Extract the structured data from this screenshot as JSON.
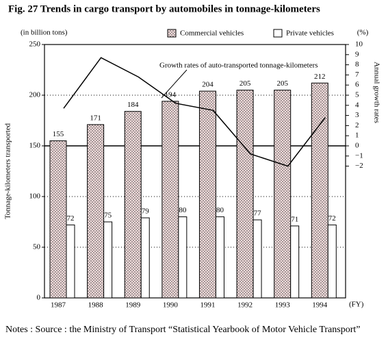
{
  "chart_data": {
    "type": "bar",
    "title": "Fig. 27 Trends in cargo transport by automobiles in tonnage-kilometers",
    "y_unit": "(in billion tons)",
    "y_label": "Tonnage-kilometers transported",
    "y2_unit": "(%)",
    "y2_label": "Annual growth rates",
    "x_unit": "(FY)",
    "annotation": "Growth rates of auto-transported tonnage-kilometers",
    "notes": "Notes : Source : the Ministry of Transport “Statistical Yearbook of Motor Vehicle Transport”",
    "categories": [
      "1987",
      "1988",
      "1989",
      "1990",
      "1991",
      "1992",
      "1993",
      "1994"
    ],
    "series": [
      {
        "name": "Commercial vehicles",
        "color": "#f2dcdc",
        "values": [
          155,
          171,
          184,
          194,
          204,
          205,
          205,
          212
        ]
      },
      {
        "name": "Private vehicles",
        "color": "#ffffff",
        "values": [
          72,
          75,
          79,
          80,
          80,
          77,
          71,
          72
        ]
      },
      {
        "name": "Growth rates of auto-transported tonnage-kilometers",
        "type": "line",
        "axis": "y2",
        "color": "#000000",
        "values": [
          3.7,
          8.7,
          6.8,
          4.2,
          3.5,
          -0.8,
          -2.0,
          2.8
        ]
      }
    ],
    "ylim": [
      0,
      250
    ],
    "yticks": [
      0,
      50,
      100,
      150,
      200,
      250
    ],
    "y2lim": [
      -15,
      10
    ],
    "y2ticks": [
      {
        "value": -2,
        "label": "−2"
      },
      {
        "value": -1,
        "label": "−1"
      },
      0,
      1,
      2,
      3,
      4,
      5,
      6,
      7,
      8,
      9,
      10
    ],
    "grid": true
  }
}
